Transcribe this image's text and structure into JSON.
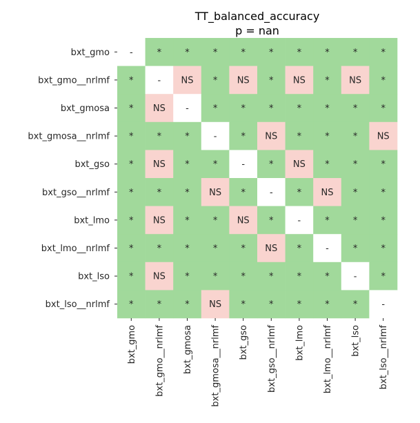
{
  "chart_data": {
    "type": "heatmap",
    "title": "TT_balanced_accuracy",
    "subtitle": "p = nan",
    "labels": [
      "bxt_gmo",
      "bxt_gmo__nrlmf",
      "bxt_gmosa",
      "bxt_gmosa__nrlmf",
      "bxt_gso",
      "bxt_gso__nrlmf",
      "bxt_lmo",
      "bxt_lmo__nrlmf",
      "bxt_lso",
      "bxt_lso__nrlmf"
    ],
    "matrix": [
      [
        "-",
        "*",
        "*",
        "*",
        "*",
        "*",
        "*",
        "*",
        "*",
        "*"
      ],
      [
        "*",
        "-",
        "NS",
        "*",
        "NS",
        "*",
        "NS",
        "*",
        "NS",
        "*"
      ],
      [
        "*",
        "NS",
        "-",
        "*",
        "*",
        "*",
        "*",
        "*",
        "*",
        "*"
      ],
      [
        "*",
        "*",
        "*",
        "-",
        "*",
        "NS",
        "*",
        "*",
        "*",
        "NS"
      ],
      [
        "*",
        "NS",
        "*",
        "*",
        "-",
        "*",
        "NS",
        "*",
        "*",
        "*"
      ],
      [
        "*",
        "*",
        "*",
        "NS",
        "*",
        "-",
        "*",
        "NS",
        "*",
        "*"
      ],
      [
        "*",
        "NS",
        "*",
        "*",
        "NS",
        "*",
        "-",
        "*",
        "*",
        "*"
      ],
      [
        "*",
        "*",
        "*",
        "*",
        "*",
        "NS",
        "*",
        "-",
        "*",
        "*"
      ],
      [
        "*",
        "NS",
        "*",
        "*",
        "*",
        "*",
        "*",
        "*",
        "-",
        "*"
      ],
      [
        "*",
        "*",
        "*",
        "NS",
        "*",
        "*",
        "*",
        "*",
        "*",
        "-"
      ]
    ],
    "colors": {
      "significant": "#a1d99b",
      "not_significant": "#f9d4cf",
      "diagonal": "#ffffff"
    },
    "legend": false,
    "grid": false
  }
}
